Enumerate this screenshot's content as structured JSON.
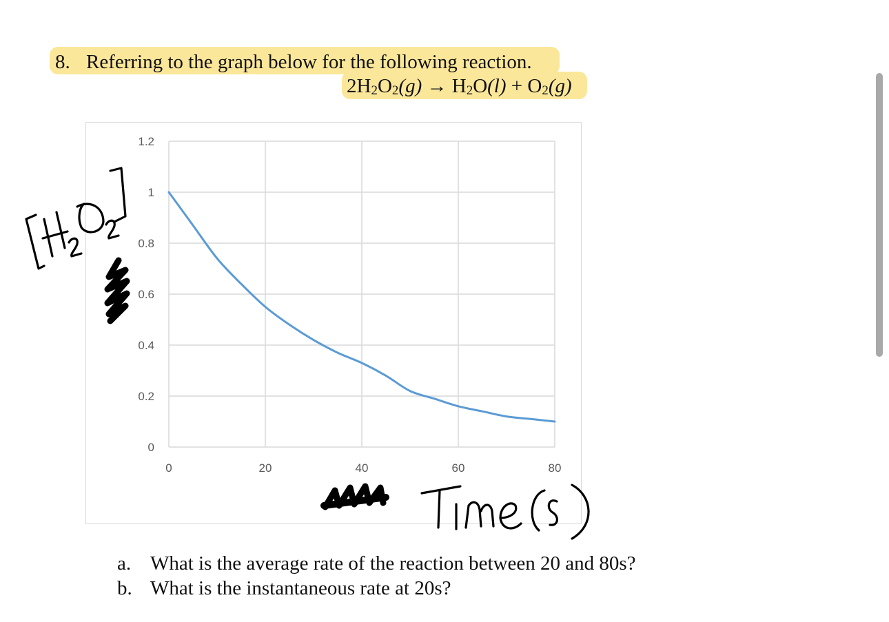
{
  "question": {
    "number": "8.",
    "text": "Referring to the graph below for the following reaction.",
    "equation": {
      "reactant_coef": "2H",
      "reactant_mid": "O",
      "reactant_state": "(g)",
      "arrow": "→",
      "product1_a": "H",
      "product1_b": "O",
      "product1_state": "(l)",
      "plus": "+",
      "product2_a": "O",
      "product2_state": "(g)",
      "sub2": "2"
    }
  },
  "handwriting": {
    "ylabel": "[H2O2]",
    "xlabel": "Time (s)"
  },
  "chart_data": {
    "type": "line",
    "title": "",
    "xlabel": "Time (s)",
    "ylabel": "[H2O2]",
    "xlim": [
      0,
      80
    ],
    "ylim": [
      0,
      1.2
    ],
    "x_ticks": [
      "0",
      "20",
      "40",
      "60",
      "80"
    ],
    "y_ticks": [
      "0",
      "0.2",
      "0.4",
      "0.6",
      "0.8",
      "1",
      "1.2"
    ],
    "grid": true,
    "legend": "none",
    "series": [
      {
        "color": "#5b9bd5",
        "x": [
          0,
          5,
          10,
          15,
          20,
          25,
          30,
          35,
          40,
          45,
          50,
          55,
          60,
          65,
          70,
          75,
          80
        ],
        "y": [
          1.0,
          0.87,
          0.74,
          0.64,
          0.55,
          0.48,
          0.42,
          0.37,
          0.33,
          0.28,
          0.22,
          0.19,
          0.16,
          0.14,
          0.12,
          0.11,
          0.1
        ]
      }
    ]
  },
  "parts": [
    {
      "letter": "a.",
      "text": "What is the average rate of the reaction between 20 and 80s?"
    },
    {
      "letter": "b.",
      "text": "What is the instantaneous rate at 20s?"
    }
  ]
}
